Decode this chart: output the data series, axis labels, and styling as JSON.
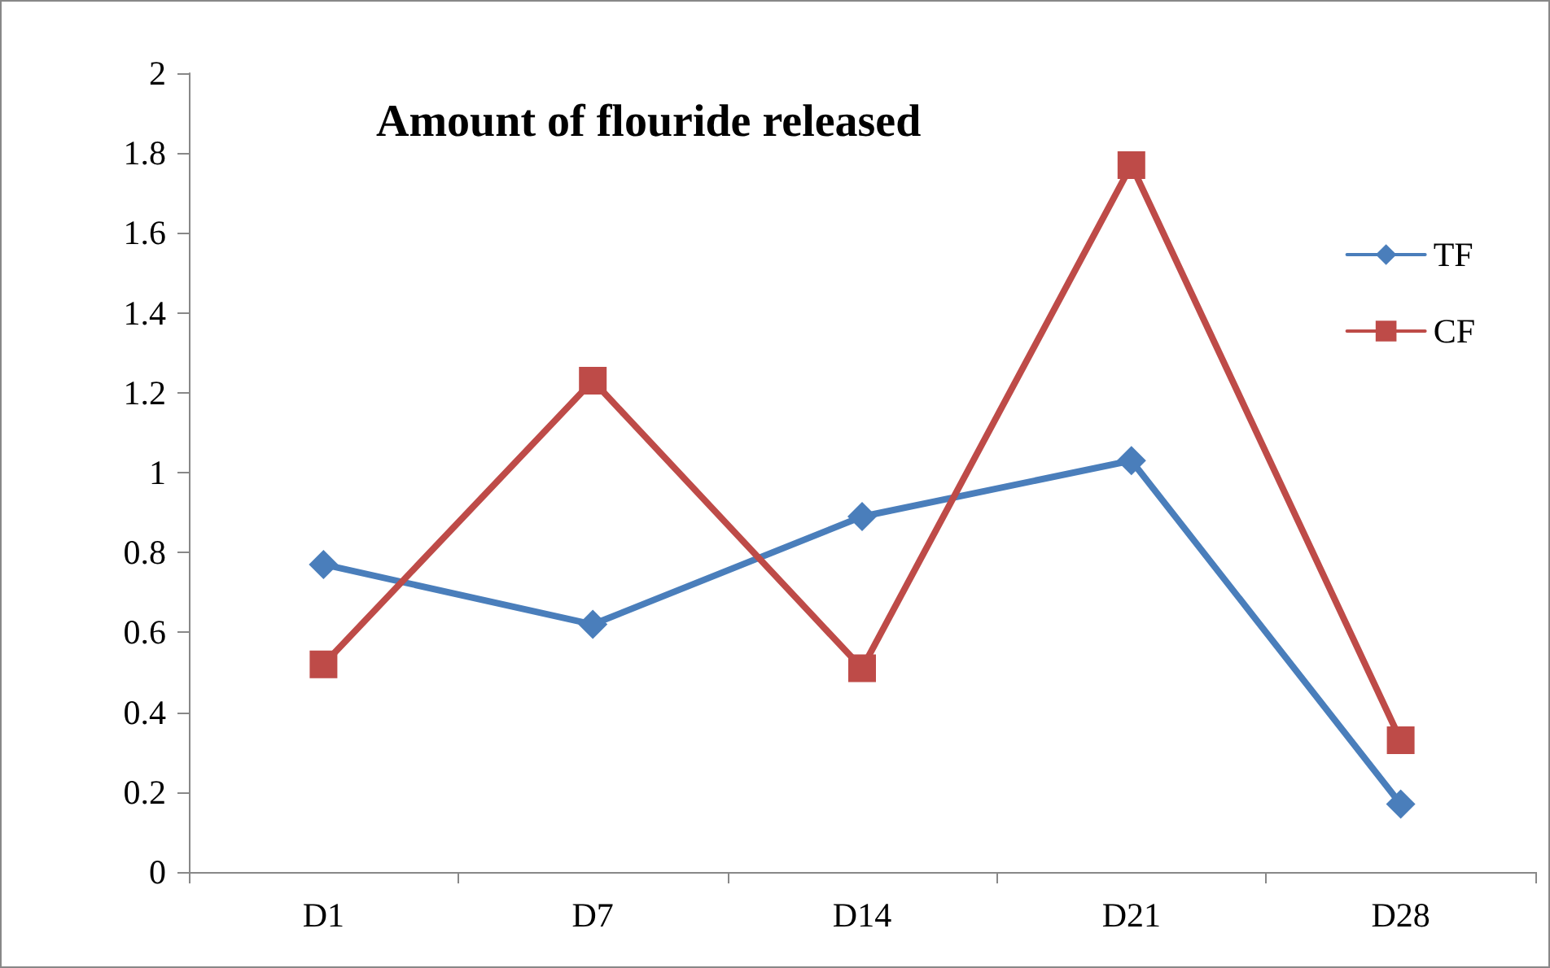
{
  "chart_data": {
    "type": "line",
    "title": "Amount of flouride released",
    "categories": [
      "D1",
      "D7",
      "D14",
      "D21",
      "D28"
    ],
    "series": [
      {
        "name": "TF",
        "color": "#4a7ebb",
        "marker": "diamond",
        "values": [
          0.77,
          0.62,
          0.89,
          1.03,
          0.17
        ]
      },
      {
        "name": "CF",
        "color": "#be4b48",
        "marker": "square",
        "values": [
          0.52,
          1.23,
          0.51,
          1.77,
          0.33
        ]
      }
    ],
    "ylim": [
      0,
      2
    ],
    "yticks": [
      0,
      0.2,
      0.4,
      0.6,
      0.8,
      1,
      1.2,
      1.4,
      1.6,
      1.8,
      2
    ],
    "grid": false,
    "legend": "right",
    "line_style": "solid"
  }
}
